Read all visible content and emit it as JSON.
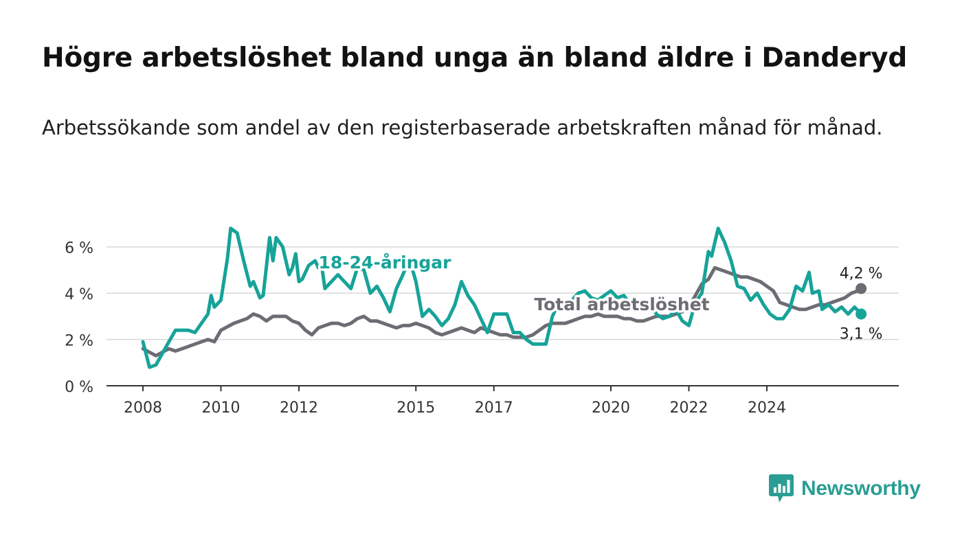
{
  "title": "Högre arbetslöshet bland unga än bland äldre i Danderyd",
  "subtitle": "Arbetssökande som andel av den registerbaserade arbetskraften månad för månad.",
  "brand": {
    "name": "Newsworthy",
    "color": "#2a9d94",
    "icon": "bar-chart-speech-bubble-icon"
  },
  "chart_data": {
    "type": "line",
    "x_ticks": [
      "2008",
      "2010",
      "2012",
      "2015",
      "2017",
      "2020",
      "2022",
      "2024"
    ],
    "y_ticks": [
      "0 %",
      "2 %",
      "4 %",
      "6 %"
    ],
    "ylim": [
      0,
      7
    ],
    "grid": true,
    "series": [
      {
        "name": "18-24-åringar",
        "color": "#16a399",
        "end_label": "3,1 %",
        "points": [
          [
            "2008-01",
            1.9
          ],
          [
            "2008-03",
            0.8
          ],
          [
            "2008-05",
            0.9
          ],
          [
            "2008-09",
            1.9
          ],
          [
            "2008-11",
            2.4
          ],
          [
            "2009-03",
            2.4
          ],
          [
            "2009-05",
            2.3
          ],
          [
            "2009-09",
            3.1
          ],
          [
            "2009-10",
            3.9
          ],
          [
            "2009-11",
            3.4
          ],
          [
            "2010-01",
            3.7
          ],
          [
            "2010-03",
            5.5
          ],
          [
            "2010-04",
            6.8
          ],
          [
            "2010-06",
            6.6
          ],
          [
            "2010-08",
            5.4
          ],
          [
            "2010-10",
            4.3
          ],
          [
            "2010-11",
            4.5
          ],
          [
            "2011-01",
            3.8
          ],
          [
            "2011-02",
            3.9
          ],
          [
            "2011-04",
            6.4
          ],
          [
            "2011-05",
            5.4
          ],
          [
            "2011-06",
            6.4
          ],
          [
            "2011-08",
            6.0
          ],
          [
            "2011-10",
            4.8
          ],
          [
            "2011-11",
            5.1
          ],
          [
            "2011-12",
            5.7
          ],
          [
            "2012-01",
            4.5
          ],
          [
            "2012-02",
            4.6
          ],
          [
            "2012-04",
            5.2
          ],
          [
            "2012-06",
            5.4
          ],
          [
            "2012-07",
            5.1
          ],
          [
            "2012-08",
            5.2
          ],
          [
            "2012-09",
            4.2
          ],
          [
            "2012-11",
            4.5
          ],
          [
            "2013-01",
            4.8
          ],
          [
            "2013-03",
            4.5
          ],
          [
            "2013-05",
            4.2
          ],
          [
            "2013-07",
            5.1
          ],
          [
            "2013-09",
            5.0
          ],
          [
            "2013-11",
            4.0
          ],
          [
            "2014-01",
            4.3
          ],
          [
            "2014-03",
            3.8
          ],
          [
            "2014-05",
            3.2
          ],
          [
            "2014-07",
            4.2
          ],
          [
            "2014-09",
            4.8
          ],
          [
            "2014-11",
            5.5
          ],
          [
            "2015-01",
            4.5
          ],
          [
            "2015-03",
            3.0
          ],
          [
            "2015-05",
            3.3
          ],
          [
            "2015-07",
            3.0
          ],
          [
            "2015-09",
            2.6
          ],
          [
            "2015-11",
            2.9
          ],
          [
            "2016-01",
            3.5
          ],
          [
            "2016-03",
            4.5
          ],
          [
            "2016-05",
            3.9
          ],
          [
            "2016-07",
            3.5
          ],
          [
            "2016-09",
            2.9
          ],
          [
            "2016-11",
            2.3
          ],
          [
            "2017-01",
            3.1
          ],
          [
            "2017-03",
            3.1
          ],
          [
            "2017-05",
            3.1
          ],
          [
            "2017-07",
            2.3
          ],
          [
            "2017-09",
            2.3
          ],
          [
            "2017-11",
            2.0
          ],
          [
            "2018-01",
            1.8
          ],
          [
            "2018-03",
            1.8
          ],
          [
            "2018-05",
            1.8
          ],
          [
            "2018-07",
            3.0
          ],
          [
            "2018-09",
            3.6
          ],
          [
            "2018-11",
            3.5
          ],
          [
            "2019-01",
            3.7
          ],
          [
            "2019-03",
            4.0
          ],
          [
            "2019-05",
            4.1
          ],
          [
            "2019-07",
            3.8
          ],
          [
            "2019-09",
            3.7
          ],
          [
            "2019-11",
            3.9
          ],
          [
            "2020-01",
            4.1
          ],
          [
            "2020-03",
            3.8
          ],
          [
            "2020-05",
            3.9
          ],
          [
            "2020-07",
            3.5
          ],
          [
            "2020-09",
            3.3
          ],
          [
            "2020-11",
            3.6
          ],
          [
            "2021-01",
            3.6
          ],
          [
            "2021-03",
            3.1
          ],
          [
            "2021-05",
            2.9
          ],
          [
            "2021-07",
            3.0
          ],
          [
            "2021-09",
            3.3
          ],
          [
            "2021-11",
            2.8
          ],
          [
            "2022-01",
            2.6
          ],
          [
            "2022-03",
            3.6
          ],
          [
            "2022-05",
            4.0
          ],
          [
            "2022-07",
            5.8
          ],
          [
            "2022-08",
            5.6
          ],
          [
            "2022-10",
            6.8
          ],
          [
            "2022-12",
            6.2
          ],
          [
            "2023-02",
            5.4
          ],
          [
            "2023-04",
            4.3
          ],
          [
            "2023-06",
            4.2
          ],
          [
            "2023-08",
            3.7
          ],
          [
            "2023-10",
            4.0
          ],
          [
            "2023-12",
            3.5
          ],
          [
            "2024-02",
            3.1
          ],
          [
            "2024-04",
            2.9
          ],
          [
            "2024-06",
            2.9
          ],
          [
            "2024-08",
            3.3
          ],
          [
            "2024-10",
            4.3
          ],
          [
            "2024-12",
            4.1
          ],
          [
            "2025-02",
            4.9
          ],
          [
            "2025-03",
            4.0
          ],
          [
            "2025-05",
            4.1
          ],
          [
            "2025-06",
            3.3
          ],
          [
            "2025-08",
            3.5
          ],
          [
            "2025-10",
            3.2
          ],
          [
            "2025-12",
            3.4
          ],
          [
            "2026-02",
            3.1
          ],
          [
            "2026-04",
            3.4
          ],
          [
            "2026-06",
            3.1
          ]
        ]
      },
      {
        "name": "Total arbetslöshet",
        "color": "#6d6c73",
        "end_label": "4,2 %",
        "points": [
          [
            "2008-01",
            1.6
          ],
          [
            "2008-05",
            1.3
          ],
          [
            "2008-09",
            1.6
          ],
          [
            "2008-11",
            1.5
          ],
          [
            "2009-01",
            1.6
          ],
          [
            "2009-05",
            1.8
          ],
          [
            "2009-09",
            2.0
          ],
          [
            "2009-11",
            1.9
          ],
          [
            "2010-01",
            2.4
          ],
          [
            "2010-05",
            2.7
          ],
          [
            "2010-09",
            2.9
          ],
          [
            "2010-11",
            3.1
          ],
          [
            "2011-01",
            3.0
          ],
          [
            "2011-03",
            2.8
          ],
          [
            "2011-05",
            3.0
          ],
          [
            "2011-09",
            3.0
          ],
          [
            "2011-11",
            2.8
          ],
          [
            "2012-01",
            2.7
          ],
          [
            "2012-03",
            2.4
          ],
          [
            "2012-05",
            2.2
          ],
          [
            "2012-07",
            2.5
          ],
          [
            "2012-09",
            2.6
          ],
          [
            "2012-11",
            2.7
          ],
          [
            "2013-01",
            2.7
          ],
          [
            "2013-03",
            2.6
          ],
          [
            "2013-05",
            2.7
          ],
          [
            "2013-07",
            2.9
          ],
          [
            "2013-09",
            3.0
          ],
          [
            "2013-11",
            2.8
          ],
          [
            "2014-01",
            2.8
          ],
          [
            "2014-03",
            2.7
          ],
          [
            "2014-05",
            2.6
          ],
          [
            "2014-07",
            2.5
          ],
          [
            "2014-09",
            2.6
          ],
          [
            "2014-11",
            2.6
          ],
          [
            "2015-01",
            2.7
          ],
          [
            "2015-03",
            2.6
          ],
          [
            "2015-05",
            2.5
          ],
          [
            "2015-07",
            2.3
          ],
          [
            "2015-09",
            2.2
          ],
          [
            "2015-11",
            2.3
          ],
          [
            "2016-01",
            2.4
          ],
          [
            "2016-03",
            2.5
          ],
          [
            "2016-05",
            2.4
          ],
          [
            "2016-07",
            2.3
          ],
          [
            "2016-09",
            2.5
          ],
          [
            "2016-11",
            2.4
          ],
          [
            "2017-01",
            2.3
          ],
          [
            "2017-03",
            2.2
          ],
          [
            "2017-05",
            2.2
          ],
          [
            "2017-07",
            2.1
          ],
          [
            "2017-09",
            2.1
          ],
          [
            "2017-11",
            2.1
          ],
          [
            "2018-01",
            2.2
          ],
          [
            "2018-03",
            2.4
          ],
          [
            "2018-05",
            2.6
          ],
          [
            "2018-07",
            2.7
          ],
          [
            "2018-09",
            2.7
          ],
          [
            "2018-11",
            2.7
          ],
          [
            "2019-01",
            2.8
          ],
          [
            "2019-03",
            2.9
          ],
          [
            "2019-05",
            3.0
          ],
          [
            "2019-07",
            3.0
          ],
          [
            "2019-09",
            3.1
          ],
          [
            "2019-11",
            3.0
          ],
          [
            "2020-01",
            3.0
          ],
          [
            "2020-03",
            3.0
          ],
          [
            "2020-05",
            2.9
          ],
          [
            "2020-07",
            2.9
          ],
          [
            "2020-09",
            2.8
          ],
          [
            "2020-11",
            2.8
          ],
          [
            "2021-01",
            2.9
          ],
          [
            "2021-03",
            3.0
          ],
          [
            "2021-05",
            3.0
          ],
          [
            "2021-07",
            3.0
          ],
          [
            "2021-09",
            3.1
          ],
          [
            "2021-11",
            3.2
          ],
          [
            "2022-01",
            3.4
          ],
          [
            "2022-03",
            3.9
          ],
          [
            "2022-05",
            4.4
          ],
          [
            "2022-07",
            4.6
          ],
          [
            "2022-09",
            5.1
          ],
          [
            "2022-11",
            5.0
          ],
          [
            "2023-01",
            4.9
          ],
          [
            "2023-03",
            4.8
          ],
          [
            "2023-05",
            4.7
          ],
          [
            "2023-07",
            4.7
          ],
          [
            "2023-09",
            4.6
          ],
          [
            "2023-11",
            4.5
          ],
          [
            "2024-01",
            4.3
          ],
          [
            "2024-03",
            4.1
          ],
          [
            "2024-05",
            3.6
          ],
          [
            "2024-07",
            3.5
          ],
          [
            "2024-09",
            3.4
          ],
          [
            "2024-11",
            3.3
          ],
          [
            "2025-01",
            3.3
          ],
          [
            "2025-03",
            3.4
          ],
          [
            "2025-05",
            3.5
          ],
          [
            "2025-07",
            3.5
          ],
          [
            "2025-09",
            3.6
          ],
          [
            "2025-11",
            3.7
          ],
          [
            "2026-01",
            3.8
          ],
          [
            "2026-03",
            4.0
          ],
          [
            "2026-05",
            4.1
          ],
          [
            "2026-06",
            4.2
          ]
        ]
      }
    ]
  }
}
